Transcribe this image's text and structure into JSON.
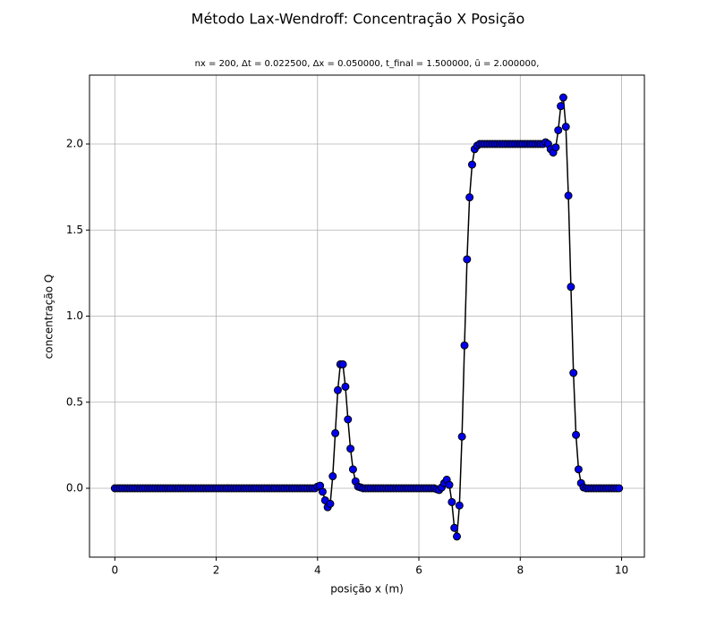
{
  "chart_data": {
    "type": "line",
    "title": "Método Lax-Wendroff: Concentração X Posição",
    "subtitle": "nx = 200, Δt = 0.022500, Δx = 0.050000, t_final = 1.500000, ū = 2.000000,",
    "x_label": "posição x (m)",
    "y_label": "concentração Q",
    "x": [
      0,
      0.05,
      0.1,
      0.15,
      0.2,
      0.25,
      0.3,
      0.35,
      0.4,
      0.45,
      0.5,
      0.55,
      0.6,
      0.65,
      0.7,
      0.75,
      0.8,
      0.85,
      0.9,
      0.95,
      1,
      1.05,
      1.1,
      1.15,
      1.2,
      1.25,
      1.3,
      1.35,
      1.4,
      1.45,
      1.5,
      1.55,
      1.6,
      1.65,
      1.7,
      1.75,
      1.8,
      1.85,
      1.9,
      1.95,
      2,
      2.05,
      2.1,
      2.15,
      2.2,
      2.25,
      2.3,
      2.35,
      2.4,
      2.45,
      2.5,
      2.55,
      2.6,
      2.65,
      2.7,
      2.75,
      2.8,
      2.85,
      2.9,
      2.95,
      3,
      3.05,
      3.1,
      3.15,
      3.2,
      3.25,
      3.3,
      3.35,
      3.4,
      3.45,
      3.5,
      3.55,
      3.6,
      3.65,
      3.7,
      3.75,
      3.8,
      3.85,
      3.9,
      3.95,
      4,
      4.05,
      4.1,
      4.15,
      4.2,
      4.25,
      4.3,
      4.35,
      4.4,
      4.45,
      4.5,
      4.55,
      4.6,
      4.65,
      4.7,
      4.75,
      4.8,
      4.85,
      4.9,
      4.95,
      5,
      5.05,
      5.1,
      5.15,
      5.2,
      5.25,
      5.3,
      5.35,
      5.4,
      5.45,
      5.5,
      5.55,
      5.6,
      5.65,
      5.7,
      5.75,
      5.8,
      5.85,
      5.9,
      5.95,
      6,
      6.05,
      6.1,
      6.15,
      6.2,
      6.25,
      6.3,
      6.35,
      6.4,
      6.45,
      6.5,
      6.55,
      6.6,
      6.65,
      6.7,
      6.75,
      6.8,
      6.85,
      6.9,
      6.95,
      7,
      7.05,
      7.1,
      7.15,
      7.2,
      7.25,
      7.3,
      7.35,
      7.4,
      7.45,
      7.5,
      7.55,
      7.6,
      7.65,
      7.7,
      7.75,
      7.8,
      7.85,
      7.9,
      7.95,
      8,
      8.05,
      8.1,
      8.15,
      8.2,
      8.25,
      8.3,
      8.35,
      8.4,
      8.45,
      8.5,
      8.55,
      8.6,
      8.65,
      8.7,
      8.75,
      8.8,
      8.85,
      8.9,
      8.95,
      9,
      9.05,
      9.1,
      9.15,
      9.2,
      9.25,
      9.3,
      9.35,
      9.4,
      9.45,
      9.5,
      9.55,
      9.6,
      9.65,
      9.7,
      9.75,
      9.8,
      9.85,
      9.9,
      9.95
    ],
    "values": [
      0,
      0,
      0,
      0,
      0,
      0,
      0,
      0,
      0,
      0,
      0,
      0,
      0,
      0,
      0,
      0,
      0,
      0,
      0,
      0,
      0,
      0,
      0,
      0,
      0,
      0,
      0,
      0,
      0,
      0,
      0,
      0,
      0,
      0,
      0,
      0,
      0,
      0,
      0,
      0,
      0,
      0,
      0,
      0,
      0,
      0,
      0,
      0,
      0,
      0,
      0,
      0,
      0,
      0,
      0,
      0,
      0,
      0,
      0,
      0,
      0,
      0,
      0,
      0,
      0,
      0,
      0,
      0,
      0,
      0,
      0,
      0,
      0,
      0,
      0,
      0,
      0,
      0,
      0,
      0,
      0.01,
      0.015,
      -0.02,
      -0.07,
      -0.11,
      -0.09,
      0.07,
      0.32,
      0.57,
      0.72,
      0.72,
      0.59,
      0.4,
      0.23,
      0.11,
      0.04,
      0.01,
      0.005,
      0,
      0,
      0,
      0,
      0,
      0,
      0,
      0,
      0,
      0,
      0,
      0,
      0,
      0,
      0,
      0,
      0,
      0,
      0,
      0,
      0,
      0,
      0,
      0,
      0,
      0,
      0,
      0,
      0,
      -0.005,
      -0.01,
      0.005,
      0.03,
      0.05,
      0.02,
      -0.08,
      -0.23,
      -0.28,
      -0.1,
      0.3,
      0.83,
      1.33,
      1.69,
      1.88,
      1.97,
      1.99,
      2,
      2,
      2,
      2,
      2,
      2,
      2,
      2,
      2,
      2,
      2,
      2,
      2,
      2,
      2,
      2,
      2,
      2,
      2,
      2,
      2,
      2,
      2,
      2,
      2,
      2,
      2.01,
      2,
      1.97,
      1.95,
      1.98,
      2.08,
      2.22,
      2.27,
      2.1,
      1.7,
      1.17,
      0.67,
      0.31,
      0.11,
      0.03,
      0.005,
      0,
      0,
      0,
      0,
      0,
      0,
      0,
      0,
      0,
      0,
      0,
      0,
      0,
      0
    ],
    "line_color": "#000000",
    "marker_color": "#0000ee",
    "marker_edge": "#000000",
    "xlim": [
      -0.5,
      10.45
    ],
    "ylim": [
      -0.4,
      2.4
    ],
    "xticks": [
      0,
      2,
      4,
      6,
      8,
      10
    ],
    "yticks": [
      {
        "value": 0,
        "label": "0.0"
      },
      {
        "value": 0.5,
        "label": "0.5"
      },
      {
        "value": 1,
        "label": "1.0"
      },
      {
        "value": 1.5,
        "label": "1.5"
      },
      {
        "value": 2,
        "label": "2.0"
      }
    ],
    "grid": true
  }
}
